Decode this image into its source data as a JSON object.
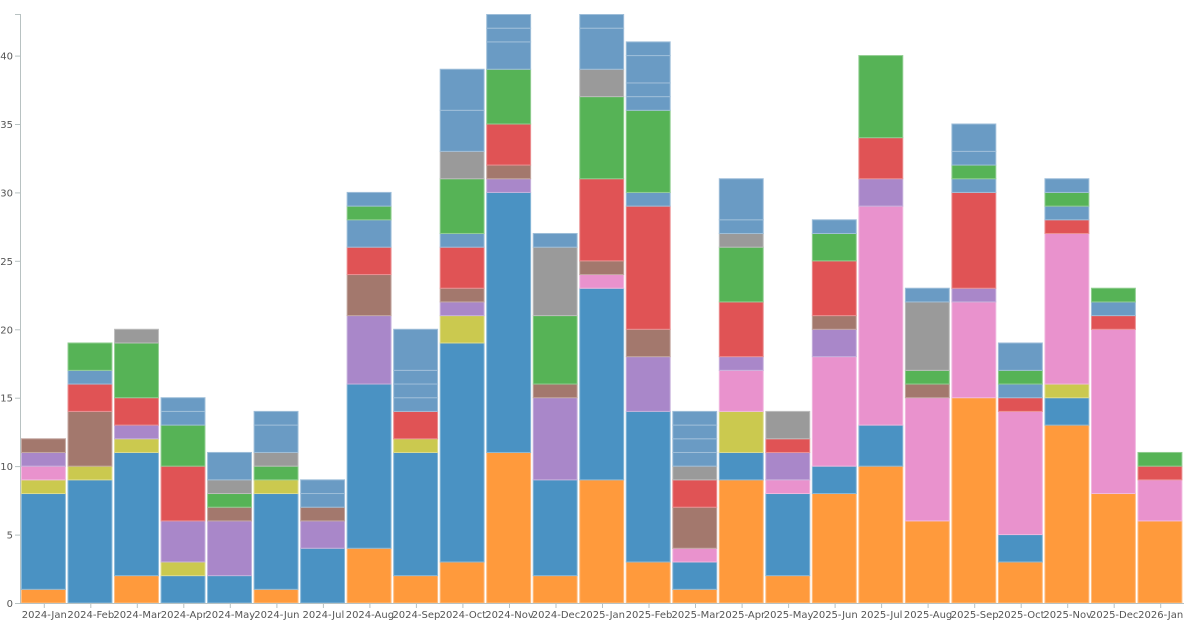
{
  "chart_data": {
    "type": "bar",
    "stacked": true,
    "title": "",
    "xlabel": "",
    "ylabel": "",
    "ylim": [
      0,
      43
    ],
    "y_ticks": [
      "0",
      "5",
      "10",
      "15",
      "20",
      "25",
      "30",
      "35",
      "40"
    ],
    "grid": false,
    "legend": "none",
    "colors": {
      "orange": "#ff9a3c",
      "blue": "#4a92c3",
      "olive": "#cbc94f",
      "pink": "#e992cd",
      "purple": "#a987c9",
      "brown": "#a3786d",
      "red": "#e05355",
      "green": "#56b356",
      "steelblue": "#6a9bc4",
      "gray": "#9a9a9a"
    },
    "categories": [
      "2024-Jan",
      "2024-Feb",
      "2024-Mar",
      "2024-Apr",
      "2024-May",
      "2024-Jun",
      "2024-Jul",
      "2024-Aug",
      "2024-Sep",
      "2024-Oct",
      "2024-Nov",
      "2024-Dec",
      "2025-Jan",
      "2025-Feb",
      "2025-Mar",
      "2025-Apr",
      "2025-May",
      "2025-Jun",
      "2025-Jul",
      "2025-Aug",
      "2025-Sep",
      "2025-Oct",
      "2025-Nov",
      "2025-Dec",
      "2026-Jan"
    ],
    "stacks": [
      [
        [
          "orange",
          1
        ],
        [
          "blue",
          7
        ],
        [
          "olive",
          1
        ],
        [
          "pink",
          1
        ],
        [
          "purple",
          1
        ],
        [
          "brown",
          1
        ]
      ],
      [
        [
          "blue",
          9
        ],
        [
          "olive",
          1
        ],
        [
          "brown",
          4
        ],
        [
          "red",
          2
        ],
        [
          "steelblue",
          1
        ],
        [
          "green",
          2
        ]
      ],
      [
        [
          "orange",
          2
        ],
        [
          "blue",
          9
        ],
        [
          "olive",
          1
        ],
        [
          "purple",
          1
        ],
        [
          "red",
          2
        ],
        [
          "green",
          4
        ],
        [
          "gray",
          1
        ]
      ],
      [
        [
          "blue",
          2
        ],
        [
          "olive",
          1
        ],
        [
          "purple",
          3
        ],
        [
          "red",
          4
        ],
        [
          "green",
          3
        ],
        [
          "steelblue",
          1
        ],
        [
          "steelblue",
          1
        ]
      ],
      [
        [
          "blue",
          2
        ],
        [
          "purple",
          4
        ],
        [
          "brown",
          1
        ],
        [
          "green",
          1
        ],
        [
          "gray",
          1
        ],
        [
          "steelblue",
          2
        ]
      ],
      [
        [
          "orange",
          1
        ],
        [
          "blue",
          7
        ],
        [
          "olive",
          1
        ],
        [
          "green",
          1
        ],
        [
          "gray",
          1
        ],
        [
          "steelblue",
          2
        ],
        [
          "steelblue",
          1
        ]
      ],
      [
        [
          "blue",
          4
        ],
        [
          "purple",
          2
        ],
        [
          "brown",
          1
        ],
        [
          "steelblue",
          1
        ],
        [
          "steelblue",
          1
        ]
      ],
      [
        [
          "orange",
          4
        ],
        [
          "blue",
          12
        ],
        [
          "purple",
          5
        ],
        [
          "brown",
          3
        ],
        [
          "red",
          2
        ],
        [
          "steelblue",
          2
        ],
        [
          "green",
          1
        ],
        [
          "steelblue",
          1
        ]
      ],
      [
        [
          "orange",
          2
        ],
        [
          "blue",
          9
        ],
        [
          "olive",
          1
        ],
        [
          "red",
          2
        ],
        [
          "steelblue",
          1
        ],
        [
          "steelblue",
          1
        ],
        [
          "steelblue",
          1
        ],
        [
          "steelblue",
          3
        ]
      ],
      [
        [
          "orange",
          3
        ],
        [
          "blue",
          16
        ],
        [
          "olive",
          2
        ],
        [
          "purple",
          1
        ],
        [
          "brown",
          1
        ],
        [
          "red",
          3
        ],
        [
          "steelblue",
          1
        ],
        [
          "green",
          4
        ],
        [
          "gray",
          2
        ],
        [
          "steelblue",
          3
        ],
        [
          "steelblue",
          3
        ]
      ],
      [
        [
          "orange",
          11
        ],
        [
          "blue",
          19
        ],
        [
          "purple",
          1
        ],
        [
          "brown",
          1
        ],
        [
          "red",
          3
        ],
        [
          "green",
          4
        ],
        [
          "steelblue",
          2
        ],
        [
          "steelblue",
          1
        ],
        [
          "steelblue",
          1
        ]
      ],
      [
        [
          "orange",
          2
        ],
        [
          "blue",
          7
        ],
        [
          "purple",
          6
        ],
        [
          "brown",
          1
        ],
        [
          "green",
          5
        ],
        [
          "gray",
          5
        ],
        [
          "steelblue",
          1
        ]
      ],
      [
        [
          "orange",
          9
        ],
        [
          "blue",
          14
        ],
        [
          "pink",
          1
        ],
        [
          "brown",
          1
        ],
        [
          "red",
          6
        ],
        [
          "green",
          6
        ],
        [
          "gray",
          2
        ],
        [
          "steelblue",
          3
        ],
        [
          "steelblue",
          1
        ]
      ],
      [
        [
          "orange",
          3
        ],
        [
          "blue",
          11
        ],
        [
          "purple",
          4
        ],
        [
          "brown",
          2
        ],
        [
          "red",
          9
        ],
        [
          "steelblue",
          1
        ],
        [
          "green",
          6
        ],
        [
          "steelblue",
          1
        ],
        [
          "steelblue",
          1
        ],
        [
          "steelblue",
          2
        ],
        [
          "steelblue",
          1
        ]
      ],
      [
        [
          "orange",
          1
        ],
        [
          "blue",
          2
        ],
        [
          "pink",
          1
        ],
        [
          "brown",
          3
        ],
        [
          "red",
          2
        ],
        [
          "gray",
          1
        ],
        [
          "steelblue",
          1
        ],
        [
          "steelblue",
          1
        ],
        [
          "steelblue",
          1
        ],
        [
          "steelblue",
          1
        ]
      ],
      [
        [
          "orange",
          9
        ],
        [
          "blue",
          2
        ],
        [
          "olive",
          3
        ],
        [
          "pink",
          3
        ],
        [
          "purple",
          1
        ],
        [
          "red",
          4
        ],
        [
          "green",
          4
        ],
        [
          "gray",
          1
        ],
        [
          "steelblue",
          1
        ],
        [
          "steelblue",
          3
        ]
      ],
      [
        [
          "orange",
          2
        ],
        [
          "blue",
          6
        ],
        [
          "pink",
          1
        ],
        [
          "purple",
          2
        ],
        [
          "red",
          1
        ],
        [
          "gray",
          2
        ]
      ],
      [
        [
          "orange",
          8
        ],
        [
          "blue",
          2
        ],
        [
          "pink",
          8
        ],
        [
          "purple",
          2
        ],
        [
          "brown",
          1
        ],
        [
          "red",
          4
        ],
        [
          "green",
          2
        ],
        [
          "steelblue",
          1
        ]
      ],
      [
        [
          "orange",
          10
        ],
        [
          "blue",
          3
        ],
        [
          "pink",
          16
        ],
        [
          "purple",
          2
        ],
        [
          "red",
          3
        ],
        [
          "green",
          6
        ]
      ],
      [
        [
          "orange",
          6
        ],
        [
          "pink",
          9
        ],
        [
          "brown",
          1
        ],
        [
          "green",
          1
        ],
        [
          "gray",
          5
        ],
        [
          "steelblue",
          1
        ]
      ],
      [
        [
          "orange",
          15
        ],
        [
          "pink",
          7
        ],
        [
          "purple",
          1
        ],
        [
          "red",
          7
        ],
        [
          "steelblue",
          1
        ],
        [
          "green",
          1
        ],
        [
          "steelblue",
          1
        ],
        [
          "steelblue",
          2
        ]
      ],
      [
        [
          "orange",
          3
        ],
        [
          "blue",
          2
        ],
        [
          "pink",
          9
        ],
        [
          "red",
          1
        ],
        [
          "steelblue",
          1
        ],
        [
          "green",
          1
        ],
        [
          "steelblue",
          2
        ]
      ],
      [
        [
          "orange",
          13
        ],
        [
          "blue",
          2
        ],
        [
          "olive",
          1
        ],
        [
          "pink",
          11
        ],
        [
          "red",
          1
        ],
        [
          "steelblue",
          1
        ],
        [
          "green",
          1
        ],
        [
          "steelblue",
          1
        ]
      ],
      [
        [
          "orange",
          8
        ],
        [
          "pink",
          12
        ],
        [
          "red",
          1
        ],
        [
          "steelblue",
          1
        ],
        [
          "green",
          1
        ]
      ],
      [
        [
          "orange",
          6
        ],
        [
          "pink",
          3
        ],
        [
          "red",
          1
        ],
        [
          "green",
          1
        ]
      ]
    ]
  }
}
